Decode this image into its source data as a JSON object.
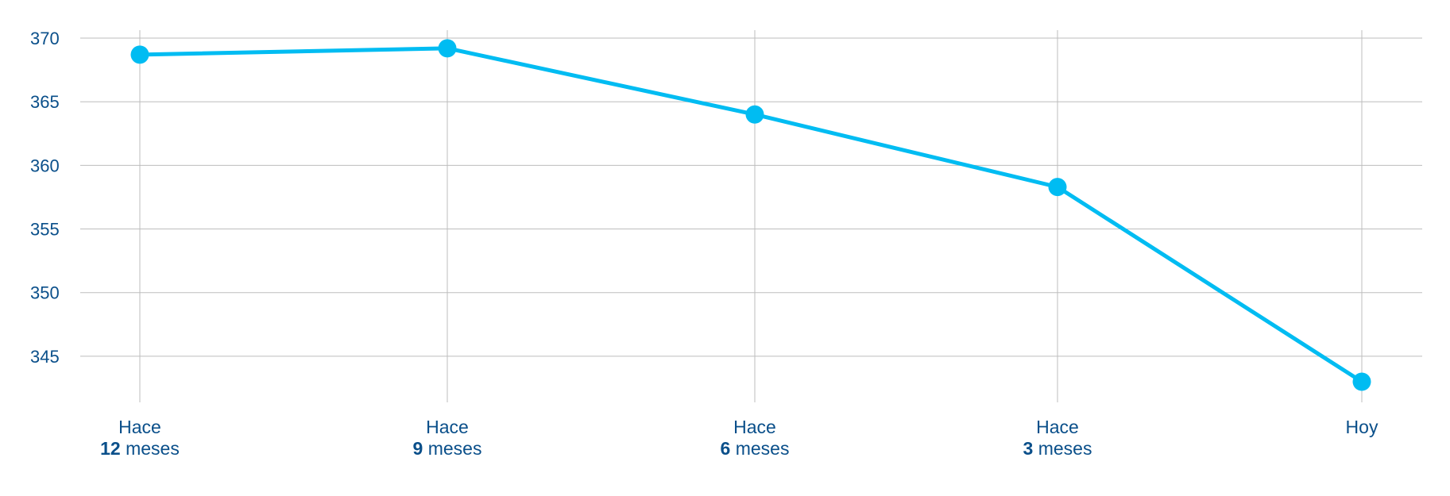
{
  "colors": {
    "line": "#00bcf2",
    "text": "#0a4f8a",
    "grid": "#bdbdbd"
  },
  "chart_data": {
    "type": "line",
    "categories": [
      {
        "top": "Hace",
        "num": "12",
        "unit": " meses"
      },
      {
        "top": "Hace",
        "num": "9",
        "unit": " meses"
      },
      {
        "top": "Hace",
        "num": "6",
        "unit": " meses"
      },
      {
        "top": "Hace",
        "num": "3",
        "unit": " meses"
      },
      {
        "top": "",
        "num": "",
        "unit": "Hoy"
      }
    ],
    "series": [
      {
        "values": [
          368.7,
          369.2,
          364.0,
          358.3,
          343.0
        ]
      }
    ],
    "yticks": [
      345,
      350,
      355,
      360,
      365,
      370
    ],
    "ylim": [
      341.5,
      370.5
    ],
    "grid": true,
    "title": "",
    "xlabel": "",
    "ylabel": ""
  }
}
